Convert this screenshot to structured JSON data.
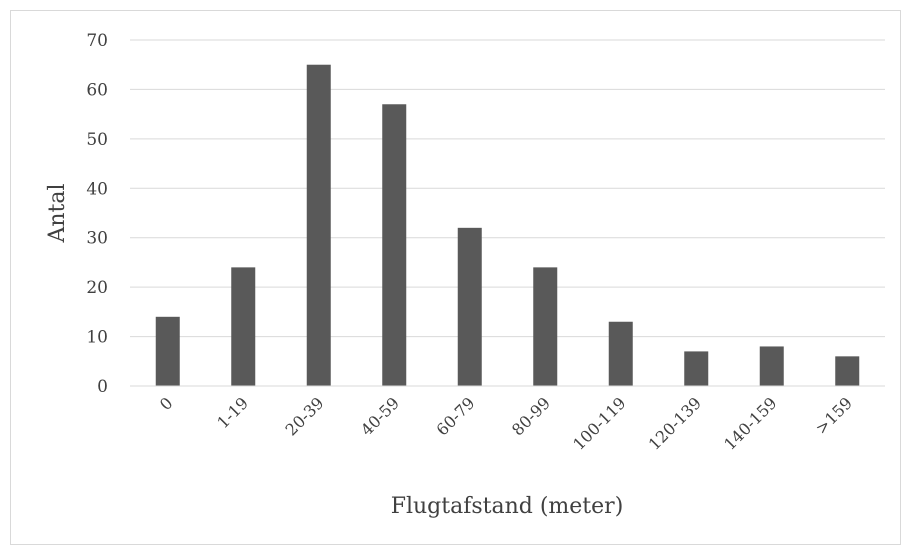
{
  "chart_data": {
    "type": "bar",
    "categories": [
      "0",
      "1-19",
      "20-39",
      "40-59",
      "60-79",
      "80-99",
      "100-119",
      "120-139",
      "140-159",
      ">159"
    ],
    "values": [
      14,
      24,
      65,
      57,
      32,
      24,
      13,
      7,
      8,
      6
    ],
    "xlabel": "Flugtafstand (meter)",
    "ylabel": "Antal",
    "ylim": [
      0,
      70
    ],
    "yticks": [
      0,
      10,
      20,
      30,
      40,
      50,
      60,
      70
    ],
    "grid": true,
    "legend": "none",
    "bar_color": "#595959",
    "grid_color": "#d9d9d9"
  }
}
